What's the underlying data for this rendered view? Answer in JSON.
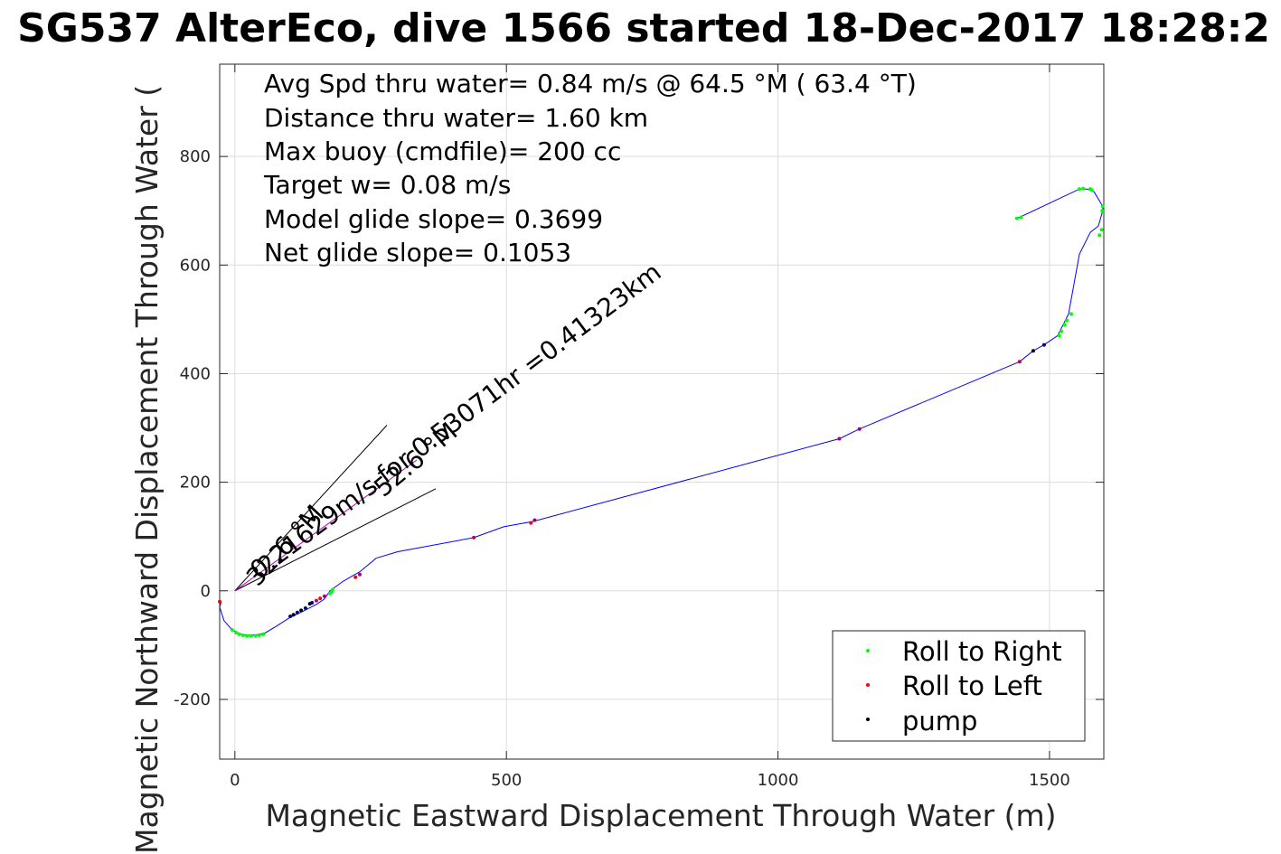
{
  "chart_data": {
    "type": "scatter",
    "title": "SG537 AlterEco, dive 1566 started 18-Dec-2017 18:28:2",
    "xlabel": "Magnetic Eastward Displacement Through Water (m)",
    "ylabel": "Magnetic Northward Displacement Through Water (",
    "xlim": [
      -28,
      1600
    ],
    "ylim": [
      -310,
      970
    ],
    "xticks": [
      0,
      500,
      1000,
      1500
    ],
    "yticks": [
      -200,
      0,
      200,
      400,
      600,
      800
    ],
    "xtick_labels": [
      "0",
      "500",
      "1000",
      "1500"
    ],
    "ytick_labels": [
      "-200",
      "0",
      "200",
      "400",
      "600",
      "800"
    ],
    "grid": true,
    "legend_position": "bottom-right",
    "annotations": [
      "Avg Spd thru water=  0.84 m/s @  64.5 °M ( 63.4 °T)",
      "Distance thru water=  1.60 km",
      "Max buoy (cmdfile)= 200 cc",
      "Target w= 0.08 m/s",
      "Model glide slope= 0.3699",
      "Net glide slope= 0.1053"
    ],
    "vector_labels": [
      "0.21629m/s for 0.53071hr =0.41323km",
      "32.6 °M",
      "52.6 °M"
    ],
    "track": {
      "name": "track",
      "color": "#0000ff",
      "x": [
        -25,
        -28,
        -20,
        -5,
        10,
        25,
        40,
        55,
        75,
        100,
        125,
        150,
        165,
        175,
        200,
        230,
        260,
        300,
        440,
        495,
        550,
        1113,
        1150,
        1445,
        1470,
        1490,
        1515,
        1535,
        1555,
        1575,
        1590,
        1598,
        1598,
        1582,
        1570,
        1555,
        1445,
        1440
      ],
      "y": [
        -20,
        -30,
        -55,
        -72,
        -80,
        -82,
        -81,
        -78,
        -66,
        -50,
        -38,
        -25,
        -15,
        0,
        18,
        35,
        60,
        72,
        98,
        118,
        128,
        280,
        298,
        422,
        442,
        453,
        470,
        510,
        620,
        660,
        672,
        700,
        708,
        735,
        740,
        740,
        688,
        686
      ]
    },
    "heading_vectors": [
      {
        "label": "32.6 °M",
        "x": [
          0,
          280
        ],
        "y": [
          0,
          305
        ]
      },
      {
        "label": "52.6 °M",
        "x": [
          0,
          370
        ],
        "y": [
          0,
          188
        ]
      },
      {
        "label": "0.21629m/s for 0.53071hr =0.41323km",
        "x": [
          0,
          335
        ],
        "y": [
          0,
          241
        ]
      }
    ],
    "series": [
      {
        "name": "Roll to Right",
        "color": "#00ff00",
        "marker": "dot",
        "x": [
          -5,
          2,
          8,
          15,
          22,
          30,
          38,
          45,
          52,
          175,
          178,
          180,
          1440,
          1448,
          1518,
          1522,
          1528,
          1532,
          1540,
          1555,
          1562,
          1575,
          1578,
          1592,
          1596,
          1597,
          1598
        ],
        "y": [
          -72,
          -77,
          -80,
          -82,
          -83,
          -83,
          -83,
          -82,
          -80,
          -5,
          -2,
          2,
          686,
          688,
          470,
          478,
          490,
          498,
          510,
          740,
          741,
          740,
          738,
          655,
          665,
          700,
          708
        ]
      },
      {
        "name": "Roll to Left",
        "color": "#ff0000",
        "marker": "dot",
        "x": [
          -28,
          150,
          157,
          165,
          222,
          230,
          440,
          545,
          552,
          1113,
          1150,
          1445
        ],
        "y": [
          -20,
          -18,
          -14,
          -10,
          25,
          30,
          98,
          125,
          130,
          280,
          298,
          422
        ],
        "tones": [
          "#ff0000",
          "#c00060",
          "#ff0000",
          "#b00070",
          "#ff0000",
          "#a00080",
          "#c00050",
          "#ff0000",
          "#900090",
          "#b00060",
          "#a00070",
          "#c00050"
        ]
      },
      {
        "name": "pump",
        "color": "#000000",
        "marker": "dot",
        "x": [
          102,
          108,
          115,
          122,
          130,
          138,
          142,
          1470,
          1490
        ],
        "y": [
          -47,
          -44,
          -40,
          -36,
          -32,
          -24,
          -22,
          442,
          453
        ],
        "tones": [
          "#00008b",
          "#000000",
          "#00008b",
          "#000000",
          "#00008b",
          "#000000",
          "#00008b",
          "#000000",
          "#00008b"
        ]
      }
    ]
  }
}
